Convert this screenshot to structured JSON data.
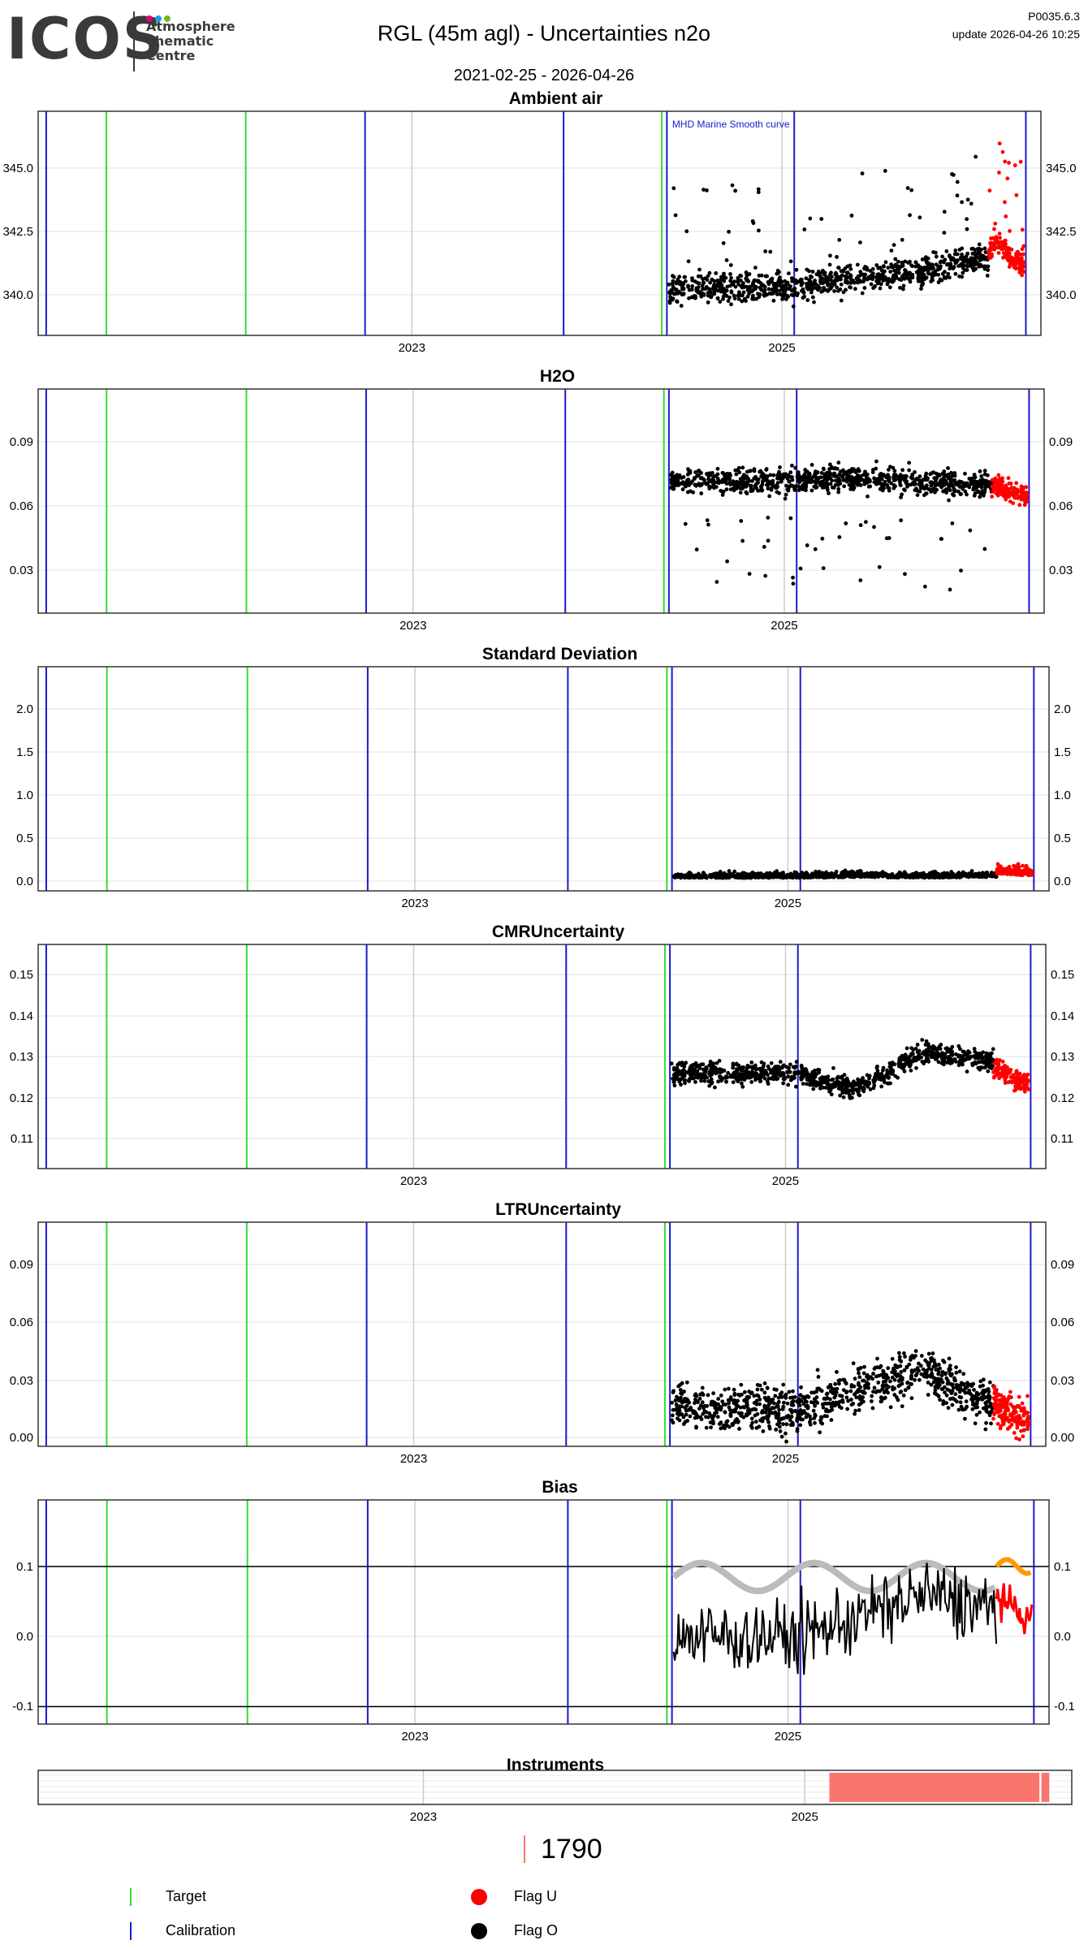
{
  "header": {
    "logo_text": "ICOS",
    "logo_sub": [
      "Atmosphere",
      "Thematic",
      "Centre"
    ],
    "logo_dot_colors": [
      "#e6007e",
      "#1fa0dc",
      "#7ab51d"
    ],
    "title": "RGL  (45m agl) - Uncertainties n2o",
    "subtitle": "2021-02-25 - 2026-04-26",
    "version": "P0035.6.3",
    "update": "update  2026-04-26 10:25"
  },
  "colors": {
    "target": "#33dd33",
    "calibration": "#1a1acc",
    "flag_u": "#ff0000",
    "flag_o": "#000000",
    "smooth": "#bbbbbb",
    "orange": "#ff9900",
    "instrument": "#f8766d",
    "grid": "#ebebeb",
    "year_line": "#cccccc"
  },
  "chart_data": [
    {
      "type": "scatter",
      "title": "Ambient air",
      "annotation": "MHD Marine Smooth curve",
      "x_ticks": [
        "2023",
        "2025"
      ],
      "y_ticks": [
        340.0,
        342.5,
        345.0
      ],
      "y_tick_labels": [
        "340.0",
        "342.5",
        "345.0"
      ],
      "ylim": [
        338.4,
        346.9
      ],
      "series": [
        {
          "flag": "O",
          "x": [
            "2025-02",
            "2025-05",
            "2025-08",
            "2025-11",
            "2026-02"
          ],
          "y": [
            340.2,
            340.5,
            340.7,
            340.9,
            341.3
          ]
        },
        {
          "flag": "U",
          "x": [
            "2026-02-15",
            "2026-03-10",
            "2026-04-10"
          ],
          "y": [
            341.5,
            342.0,
            341.2
          ]
        }
      ]
    },
    {
      "type": "scatter",
      "title": "H2O",
      "x_ticks": [
        "2023",
        "2025"
      ],
      "y_ticks": [
        0.03,
        0.06,
        0.09
      ],
      "y_tick_labels": [
        "0.03",
        "0.06",
        "0.09"
      ],
      "ylim": [
        0.01,
        0.115
      ],
      "series": [
        {
          "flag": "O",
          "x": [
            "2025-02",
            "2025-06",
            "2025-10",
            "2026-02"
          ],
          "y": [
            0.072,
            0.074,
            0.071,
            0.07
          ]
        },
        {
          "flag": "U",
          "x": [
            "2026-02-15",
            "2026-04-10"
          ],
          "y": [
            0.07,
            0.066
          ]
        }
      ]
    },
    {
      "type": "scatter",
      "title": "Standard Deviation",
      "x_ticks": [
        "2023",
        "2025"
      ],
      "y_ticks": [
        0.0,
        0.5,
        1.0,
        1.5,
        2.0
      ],
      "y_tick_labels": [
        "0.0",
        "0.5",
        "1.0",
        "1.5",
        "2.0"
      ],
      "ylim": [
        -0.1,
        2.5
      ],
      "series": [
        {
          "flag": "O",
          "x": [
            "2025-02",
            "2025-06",
            "2025-10",
            "2026-02"
          ],
          "y": [
            0.05,
            0.06,
            0.05,
            0.06
          ]
        },
        {
          "flag": "U",
          "x": [
            "2026-02-15",
            "2026-04-10"
          ],
          "y": [
            0.1,
            0.08
          ]
        }
      ]
    },
    {
      "type": "scatter",
      "title": "CMRUncertainty",
      "x_ticks": [
        "2023",
        "2025"
      ],
      "y_ticks": [
        0.11,
        0.12,
        0.13,
        0.14,
        0.15
      ],
      "y_tick_labels": [
        "0.11",
        "0.12",
        "0.13",
        "0.14",
        "0.15"
      ],
      "ylim": [
        0.103,
        0.157
      ],
      "series": [
        {
          "flag": "O",
          "x": [
            "2025-02",
            "2025-06",
            "2025-10",
            "2026-02"
          ],
          "y": [
            0.126,
            0.122,
            0.131,
            0.129
          ]
        },
        {
          "flag": "U",
          "x": [
            "2026-02-15",
            "2026-04-10"
          ],
          "y": [
            0.128,
            0.124
          ]
        }
      ]
    },
    {
      "type": "scatter",
      "title": "LTRUncertainty",
      "x_ticks": [
        "2023",
        "2025"
      ],
      "y_ticks": [
        0.0,
        0.03,
        0.06,
        0.09
      ],
      "y_tick_labels": [
        "0.00",
        "0.03",
        "0.06",
        "0.09"
      ],
      "ylim": [
        -0.005,
        0.112
      ],
      "series": [
        {
          "flag": "O",
          "x": [
            "2025-02",
            "2025-06",
            "2025-10",
            "2026-02"
          ],
          "y": [
            0.015,
            0.025,
            0.035,
            0.018
          ]
        },
        {
          "flag": "U",
          "x": [
            "2026-02-15",
            "2026-04-10"
          ],
          "y": [
            0.018,
            0.01
          ]
        }
      ]
    },
    {
      "type": "line",
      "title": "Bias",
      "x_ticks": [
        "2023",
        "2025"
      ],
      "y_ticks": [
        -0.1,
        0.0,
        0.1
      ],
      "y_tick_labels": [
        "-0.1",
        "0.0",
        "0.1"
      ],
      "ylim": [
        -0.125,
        0.195
      ],
      "hlines": [
        0.1,
        -0.1
      ],
      "series": [
        {
          "flag": "O",
          "x": [
            "2025-02",
            "2025-06",
            "2025-10",
            "2026-02"
          ],
          "y": [
            0.0,
            0.03,
            0.06,
            0.04
          ]
        },
        {
          "flag": "U",
          "x": [
            "2026-02-15",
            "2026-04-10"
          ],
          "y": [
            0.06,
            0.03
          ]
        }
      ]
    },
    {
      "type": "bar",
      "title": "Instruments",
      "x_ticks": [
        "2023",
        "2025"
      ],
      "categories": [
        "1790"
      ],
      "segments": [
        [
          "2025-02-25",
          "2026-04-01"
        ],
        [
          "2026-04-05",
          "2026-04-20"
        ]
      ]
    }
  ],
  "instrument_legend": {
    "label": "1790"
  },
  "legend": {
    "target": "Target",
    "calibration": "Calibration",
    "flag_u": "Flag U",
    "flag_o": "Flag O"
  }
}
